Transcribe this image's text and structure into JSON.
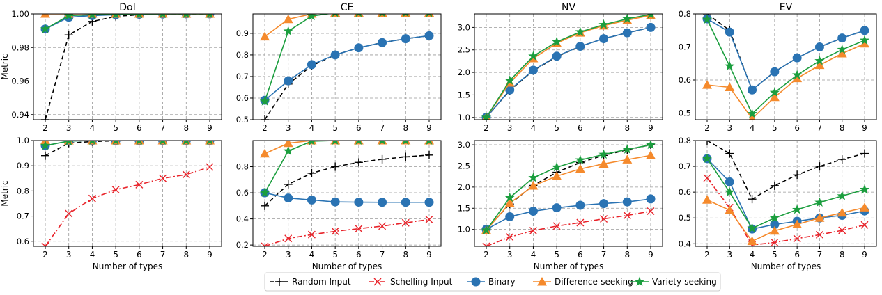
{
  "legend": {
    "placement": "bottom-center",
    "entries": [
      {
        "key": "random",
        "label": "Random Input"
      },
      {
        "key": "schelling",
        "label": "Schelling Input"
      },
      {
        "key": "binary",
        "label": "Binary"
      },
      {
        "key": "difference",
        "label": "Difference-seeking"
      },
      {
        "key": "variety",
        "label": "Variety-seeking"
      }
    ]
  },
  "styles": {
    "random": {
      "color": "#000000",
      "dash": "6 4",
      "marker": "plus"
    },
    "schelling": {
      "color": "#e8232a",
      "dash": "8 3 2 3",
      "marker": "x"
    },
    "binary": {
      "color": "#2a73b3",
      "dash": "",
      "marker": "circle"
    },
    "difference": {
      "color": "#f58a2c",
      "dash": "",
      "marker": "triangle"
    },
    "variety": {
      "color": "#1b9e3e",
      "dash": "",
      "marker": "star"
    }
  },
  "chart_data": [
    {
      "type": "line",
      "title": "DoI",
      "xlabel": "",
      "ylabel": "Metric",
      "x": [
        2,
        3,
        4,
        5,
        6,
        7,
        8,
        9
      ],
      "ylim": [
        0.937,
        1.0
      ],
      "yticks": [
        0.94,
        0.96,
        0.98,
        1.0
      ],
      "ytick_labels": [
        "0.94",
        "0.96",
        "0.98",
        "1.00"
      ],
      "grid": true,
      "series": [
        {
          "key": "random",
          "values": [
            0.937,
            0.9875,
            0.9955,
            0.9985,
            0.9995,
            0.9998,
            0.9999,
            1.0
          ]
        },
        {
          "key": "binary",
          "values": [
            0.991,
            0.998,
            0.999,
            0.9995,
            0.9998,
            0.9999,
            1.0,
            1.0
          ]
        },
        {
          "key": "difference",
          "values": [
            1.0,
            1.0,
            1.0,
            1.0,
            1.0,
            1.0,
            1.0,
            1.0
          ]
        },
        {
          "key": "variety",
          "values": [
            0.991,
            0.999,
            0.9995,
            0.9998,
            0.9999,
            1.0,
            1.0,
            1.0
          ]
        }
      ]
    },
    {
      "type": "line",
      "title": "CE",
      "xlabel": "",
      "ylabel": "",
      "x": [
        2,
        3,
        4,
        5,
        6,
        7,
        8,
        9
      ],
      "ylim": [
        0.5,
        0.99
      ],
      "yticks": [
        0.5,
        0.6,
        0.7,
        0.8,
        0.9
      ],
      "ytick_labels": [
        "0.5",
        "0.6",
        "0.7",
        "0.8",
        "0.9"
      ],
      "grid": true,
      "series": [
        {
          "key": "random",
          "values": [
            0.5,
            0.665,
            0.75,
            0.8,
            0.833,
            0.857,
            0.875,
            0.889
          ]
        },
        {
          "key": "binary",
          "values": [
            0.59,
            0.68,
            0.755,
            0.8,
            0.833,
            0.857,
            0.875,
            0.889
          ]
        },
        {
          "key": "difference",
          "values": [
            0.885,
            0.965,
            0.99,
            0.995,
            0.995,
            0.995,
            0.995,
            0.995
          ]
        },
        {
          "key": "variety",
          "values": [
            0.585,
            0.91,
            0.98,
            0.995,
            0.995,
            0.995,
            0.995,
            0.995
          ]
        }
      ]
    },
    {
      "type": "line",
      "title": "NV",
      "xlabel": "",
      "ylabel": "",
      "x": [
        2,
        3,
        4,
        5,
        6,
        7,
        8,
        9
      ],
      "ylim": [
        0.95,
        3.3
      ],
      "yticks": [
        1.0,
        1.5,
        2.0,
        2.5,
        3.0
      ],
      "ytick_labels": [
        "1.0",
        "1.5",
        "2.0",
        "2.5",
        "3.0"
      ],
      "grid": true,
      "series": [
        {
          "key": "random",
          "values": [
            1.0,
            1.6,
            2.04,
            2.35,
            2.58,
            2.75,
            2.88,
            3.0
          ]
        },
        {
          "key": "binary",
          "values": [
            1.0,
            1.61,
            2.05,
            2.36,
            2.58,
            2.75,
            2.88,
            3.0
          ]
        },
        {
          "key": "difference",
          "values": [
            1.0,
            1.77,
            2.31,
            2.65,
            2.88,
            3.04,
            3.16,
            3.27
          ]
        },
        {
          "key": "variety",
          "values": [
            1.0,
            1.82,
            2.36,
            2.68,
            2.9,
            3.06,
            3.19,
            3.29
          ]
        }
      ]
    },
    {
      "type": "line",
      "title": "EV",
      "xlabel": "",
      "ylabel": "",
      "x": [
        2,
        3,
        4,
        5,
        6,
        7,
        8,
        9
      ],
      "ylim": [
        0.48,
        0.8
      ],
      "yticks": [
        0.5,
        0.6,
        0.7,
        0.8
      ],
      "ytick_labels": [
        "0.5",
        "0.6",
        "0.7",
        "0.8"
      ],
      "grid": true,
      "series": [
        {
          "key": "random",
          "values": [
            0.8,
            0.75,
            0.57,
            0.625,
            0.667,
            0.7,
            0.727,
            0.75
          ]
        },
        {
          "key": "binary",
          "values": [
            0.785,
            0.745,
            0.57,
            0.625,
            0.667,
            0.7,
            0.727,
            0.75
          ]
        },
        {
          "key": "difference",
          "values": [
            0.585,
            0.578,
            0.483,
            0.548,
            0.605,
            0.645,
            0.68,
            0.71
          ]
        },
        {
          "key": "variety",
          "values": [
            0.783,
            0.642,
            0.498,
            0.562,
            0.615,
            0.658,
            0.692,
            0.72
          ]
        }
      ]
    },
    {
      "type": "line",
      "title": "",
      "xlabel": "Number of types",
      "ylabel": "Metric",
      "x": [
        2,
        3,
        4,
        5,
        6,
        7,
        8,
        9
      ],
      "ylim": [
        0.58,
        1.0
      ],
      "yticks": [
        0.6,
        0.7,
        0.8,
        0.9,
        1.0
      ],
      "ytick_labels": [
        "0.6",
        "0.7",
        "0.8",
        "0.9",
        "1.0"
      ],
      "grid": true,
      "series": [
        {
          "key": "random",
          "values": [
            0.94,
            0.99,
            0.996,
            0.999,
            1.0,
            1.0,
            1.0,
            1.0
          ]
        },
        {
          "key": "schelling",
          "values": [
            0.58,
            0.71,
            0.77,
            0.805,
            0.825,
            0.85,
            0.865,
            0.895
          ]
        },
        {
          "key": "binary",
          "values": [
            0.98,
            0.998,
            1.0,
            1.0,
            1.0,
            1.0,
            1.0,
            1.0
          ]
        },
        {
          "key": "difference",
          "values": [
            1.0,
            1.0,
            1.0,
            1.0,
            1.0,
            1.0,
            1.0,
            1.0
          ]
        },
        {
          "key": "variety",
          "values": [
            0.98,
            0.998,
            1.0,
            1.0,
            1.0,
            1.0,
            1.0,
            1.0
          ]
        }
      ]
    },
    {
      "type": "line",
      "title": "",
      "xlabel": "Number of types",
      "ylabel": "",
      "x": [
        2,
        3,
        4,
        5,
        6,
        7,
        8,
        9
      ],
      "ylim": [
        0.19,
        1.0
      ],
      "yticks": [
        0.2,
        0.4,
        0.6,
        0.8
      ],
      "ytick_labels": [
        "0.2",
        "0.4",
        "0.6",
        "0.8"
      ],
      "grid": true,
      "series": [
        {
          "key": "random",
          "values": [
            0.5,
            0.665,
            0.75,
            0.8,
            0.833,
            0.857,
            0.875,
            0.889
          ]
        },
        {
          "key": "schelling",
          "values": [
            0.19,
            0.25,
            0.28,
            0.305,
            0.325,
            0.345,
            0.37,
            0.395
          ]
        },
        {
          "key": "binary",
          "values": [
            0.6,
            0.56,
            0.545,
            0.53,
            0.528,
            0.527,
            0.527,
            0.527
          ]
        },
        {
          "key": "difference",
          "values": [
            0.9,
            0.98,
            1.0,
            1.0,
            1.0,
            1.0,
            1.0,
            1.0
          ]
        },
        {
          "key": "variety",
          "values": [
            0.6,
            0.92,
            0.995,
            1.0,
            1.0,
            1.0,
            1.0,
            1.0
          ]
        }
      ]
    },
    {
      "type": "line",
      "title": "",
      "xlabel": "Number of types",
      "ylabel": "",
      "x": [
        2,
        3,
        4,
        5,
        6,
        7,
        8,
        9
      ],
      "ylim": [
        0.6,
        3.1
      ],
      "yticks": [
        1.0,
        1.5,
        2.0,
        2.5,
        3.0
      ],
      "ytick_labels": [
        "1.0",
        "1.5",
        "2.0",
        "2.5",
        "3.0"
      ],
      "grid": true,
      "series": [
        {
          "key": "random",
          "values": [
            1.0,
            1.6,
            2.04,
            2.35,
            2.58,
            2.75,
            2.88,
            3.0
          ]
        },
        {
          "key": "schelling",
          "values": [
            0.6,
            0.82,
            0.97,
            1.08,
            1.16,
            1.25,
            1.33,
            1.43
          ]
        },
        {
          "key": "binary",
          "values": [
            1.0,
            1.3,
            1.43,
            1.51,
            1.57,
            1.61,
            1.65,
            1.72
          ]
        },
        {
          "key": "difference",
          "values": [
            0.98,
            1.62,
            2.03,
            2.26,
            2.43,
            2.55,
            2.65,
            2.75
          ]
        },
        {
          "key": "variety",
          "values": [
            0.98,
            1.75,
            2.22,
            2.47,
            2.64,
            2.77,
            2.89,
            3.0
          ]
        }
      ]
    },
    {
      "type": "line",
      "title": "",
      "xlabel": "Number of types",
      "ylabel": "",
      "x": [
        2,
        3,
        4,
        5,
        6,
        7,
        8,
        9
      ],
      "ylim": [
        0.39,
        0.8
      ],
      "yticks": [
        0.4,
        0.5,
        0.6,
        0.7,
        0.8
      ],
      "ytick_labels": [
        "0.4",
        "0.5",
        "0.6",
        "0.7",
        "0.8"
      ],
      "grid": true,
      "series": [
        {
          "key": "random",
          "values": [
            0.8,
            0.75,
            0.573,
            0.625,
            0.667,
            0.7,
            0.727,
            0.75
          ]
        },
        {
          "key": "schelling",
          "values": [
            0.655,
            0.54,
            0.395,
            0.405,
            0.42,
            0.435,
            0.452,
            0.473
          ]
        },
        {
          "key": "binary",
          "values": [
            0.73,
            0.64,
            0.457,
            0.475,
            0.487,
            0.5,
            0.51,
            0.527
          ]
        },
        {
          "key": "difference",
          "values": [
            0.57,
            0.53,
            0.41,
            0.45,
            0.475,
            0.5,
            0.52,
            0.54
          ]
        },
        {
          "key": "variety",
          "values": [
            0.73,
            0.6,
            0.46,
            0.5,
            0.532,
            0.56,
            0.585,
            0.61
          ]
        }
      ]
    }
  ]
}
